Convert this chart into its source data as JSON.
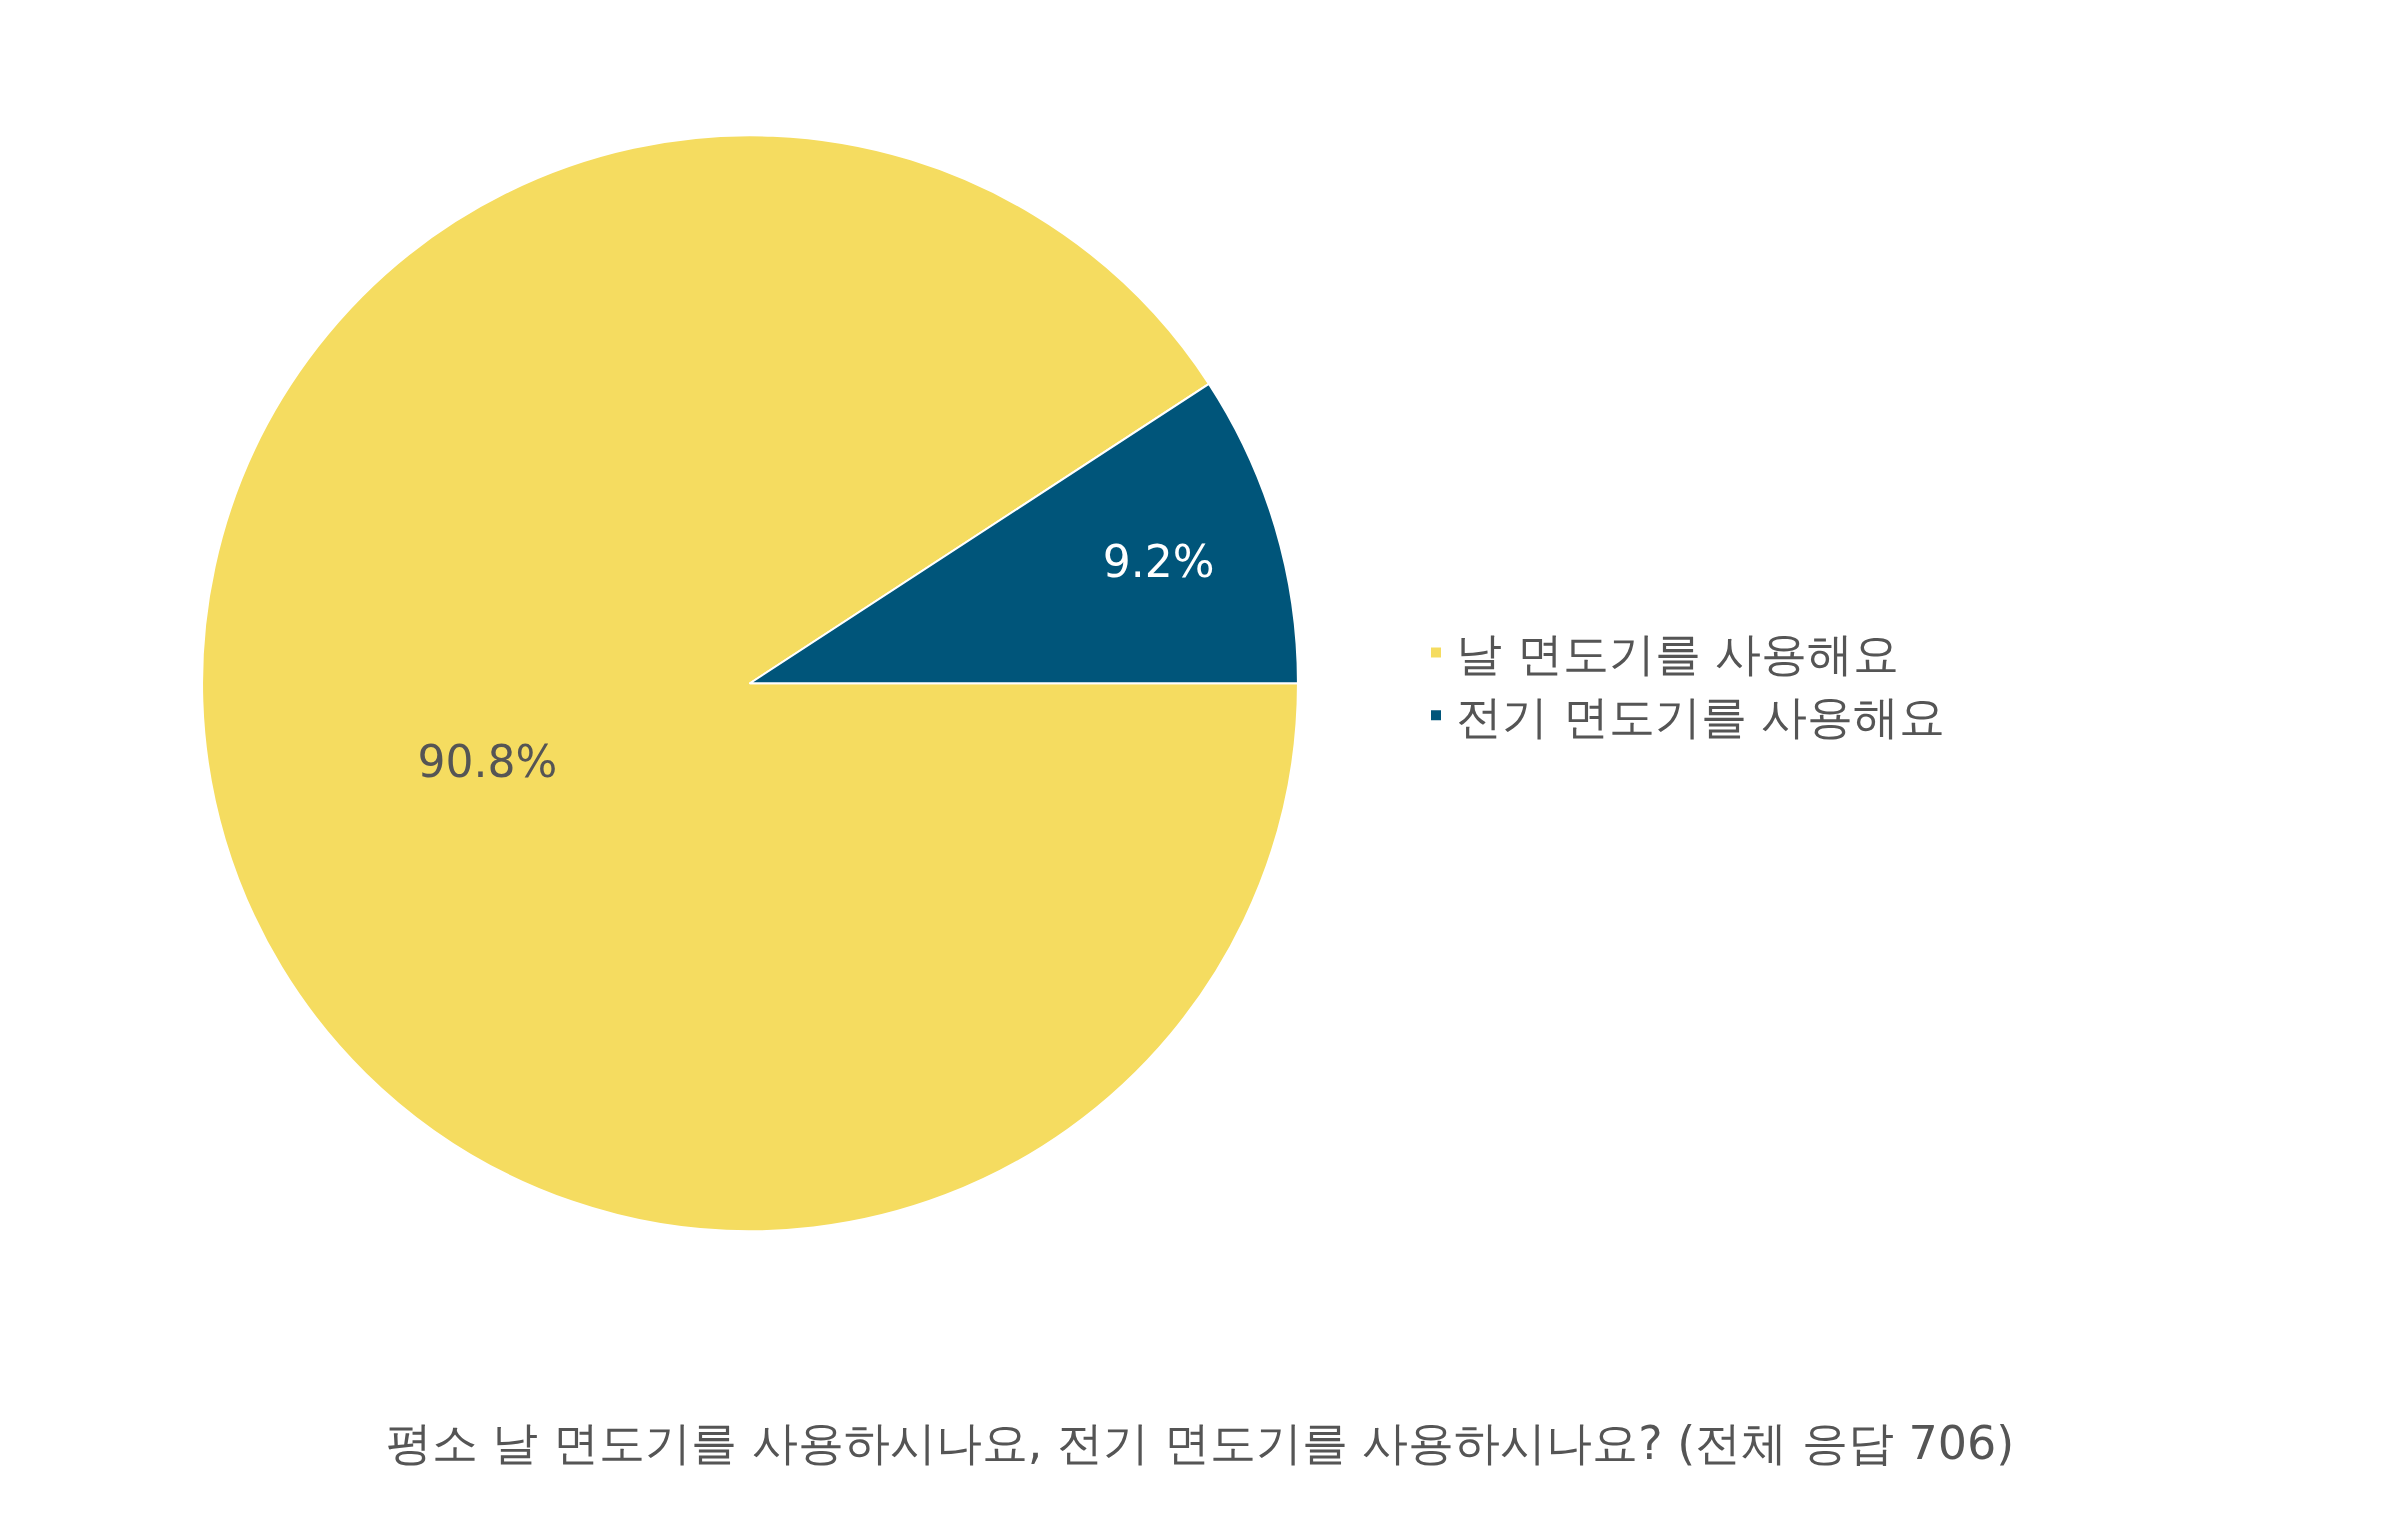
{
  "chart_data": {
    "type": "pie",
    "title": "평소 날 면도기를 사용하시나요, 전기 면도기를 사용하시나요? (전체 응답 706)",
    "categories": [
      "날 면도기를 사용해요",
      "전기 면도기를 사용해요"
    ],
    "values": [
      90.8,
      9.2
    ],
    "value_labels": [
      "90.8%",
      "9.2%"
    ],
    "colors": [
      "#f5dc60",
      "#00557a"
    ],
    "legend": "right"
  }
}
